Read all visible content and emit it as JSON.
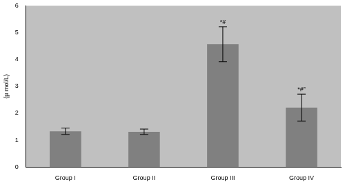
{
  "chart_data": {
    "type": "bar",
    "y_label": "(µ mol/L)",
    "categories": [
      "Group I",
      "Group II",
      "Group III",
      "Group IV"
    ],
    "values": [
      1.33,
      1.31,
      4.57,
      2.21
    ],
    "errors": [
      0.12,
      0.1,
      0.65,
      0.5
    ],
    "annotations": [
      {
        "category": "Group III",
        "text": "*#"
      },
      {
        "category": "Group IV",
        "text": "*#”"
      }
    ],
    "color": "#808080",
    "ylim": [
      0,
      6
    ],
    "yticks": [
      0,
      1,
      2,
      3,
      4,
      5,
      6
    ],
    "grid": false
  }
}
